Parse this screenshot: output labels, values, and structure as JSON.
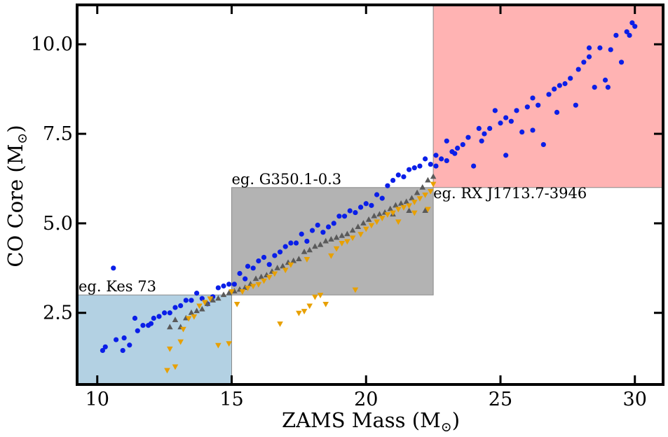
{
  "chart_data": {
    "type": "scatter",
    "xlabel": "ZAMS Mass (M",
    "xlabel_sub": "⊙",
    "xlabel_close": ")",
    "ylabel": "CO Core (M",
    "ylabel_sub": "⊙",
    "ylabel_close": ")",
    "xlim": [
      9.25,
      31.05
    ],
    "ylim": [
      0.5,
      11.1
    ],
    "xticks": [
      10,
      15,
      20,
      25,
      30
    ],
    "xtick_labels": [
      "10",
      "15",
      "20",
      "25",
      "30"
    ],
    "yticks": [
      2.5,
      5.0,
      7.5,
      10.0
    ],
    "ytick_labels": [
      "2.5",
      "5.0",
      "7.5",
      "10.0"
    ],
    "regions": [
      {
        "label": "eg. Kes 73",
        "x": [
          9.25,
          15.0
        ],
        "y": [
          0.5,
          3.0
        ],
        "color": "#b3d1e3"
      },
      {
        "label": "eg. G350.1-0.3",
        "x": [
          15.0,
          22.5
        ],
        "y": [
          3.0,
          6.0
        ],
        "color": "#b3b3b3"
      },
      {
        "label": "eg. RX J1713.7-3946",
        "x": [
          22.5,
          31.05
        ],
        "y": [
          6.0,
          11.1
        ],
        "color": "#ffb3b3"
      }
    ],
    "series": [
      {
        "name": "circles",
        "marker": "circle",
        "color": "#0a1ee8",
        "points": [
          [
            10.2,
            1.45
          ],
          [
            10.3,
            1.55
          ],
          [
            10.6,
            3.75
          ],
          [
            10.7,
            1.75
          ],
          [
            10.95,
            1.45
          ],
          [
            11.0,
            1.8
          ],
          [
            11.2,
            1.6
          ],
          [
            11.4,
            2.35
          ],
          [
            11.5,
            2.0
          ],
          [
            11.7,
            2.15
          ],
          [
            11.9,
            2.15
          ],
          [
            12.0,
            2.2
          ],
          [
            12.1,
            2.35
          ],
          [
            12.3,
            2.4
          ],
          [
            12.5,
            2.5
          ],
          [
            12.7,
            2.5
          ],
          [
            12.9,
            2.65
          ],
          [
            13.1,
            2.7
          ],
          [
            13.3,
            2.85
          ],
          [
            13.5,
            2.85
          ],
          [
            13.7,
            3.05
          ],
          [
            13.9,
            2.9
          ],
          [
            14.1,
            2.75
          ],
          [
            14.3,
            2.95
          ],
          [
            14.5,
            3.2
          ],
          [
            14.7,
            3.25
          ],
          [
            14.9,
            3.3
          ],
          [
            15.1,
            3.3
          ],
          [
            15.3,
            3.6
          ],
          [
            15.5,
            3.45
          ],
          [
            15.6,
            3.8
          ],
          [
            15.8,
            3.75
          ],
          [
            16.0,
            3.95
          ],
          [
            16.2,
            4.05
          ],
          [
            16.4,
            3.85
          ],
          [
            16.6,
            4.1
          ],
          [
            16.8,
            4.2
          ],
          [
            17.0,
            4.35
          ],
          [
            17.2,
            4.45
          ],
          [
            17.4,
            4.45
          ],
          [
            17.6,
            4.7
          ],
          [
            17.8,
            4.5
          ],
          [
            18.0,
            4.8
          ],
          [
            18.2,
            4.95
          ],
          [
            18.4,
            4.75
          ],
          [
            18.6,
            4.9
          ],
          [
            18.8,
            5.0
          ],
          [
            19.0,
            5.2
          ],
          [
            19.2,
            5.2
          ],
          [
            19.4,
            5.35
          ],
          [
            19.6,
            5.3
          ],
          [
            19.8,
            5.45
          ],
          [
            20.0,
            5.55
          ],
          [
            20.2,
            5.5
          ],
          [
            20.4,
            5.8
          ],
          [
            20.6,
            5.7
          ],
          [
            20.8,
            6.05
          ],
          [
            21.0,
            6.2
          ],
          [
            21.2,
            6.35
          ],
          [
            21.4,
            6.3
          ],
          [
            21.6,
            6.5
          ],
          [
            21.8,
            6.55
          ],
          [
            22.0,
            6.6
          ],
          [
            22.2,
            6.8
          ],
          [
            22.4,
            6.65
          ],
          [
            22.6,
            6.9
          ],
          [
            22.8,
            6.8
          ],
          [
            23.0,
            6.75
          ],
          [
            23.2,
            7.0
          ],
          [
            23.4,
            7.1
          ],
          [
            23.6,
            7.2
          ],
          [
            23.8,
            7.4
          ],
          [
            24.0,
            6.6
          ],
          [
            24.2,
            7.65
          ],
          [
            24.4,
            7.5
          ],
          [
            24.6,
            7.65
          ],
          [
            24.8,
            8.15
          ],
          [
            25.0,
            7.8
          ],
          [
            25.2,
            7.95
          ],
          [
            25.4,
            7.85
          ],
          [
            25.6,
            8.15
          ],
          [
            25.8,
            7.55
          ],
          [
            26.0,
            8.25
          ],
          [
            26.2,
            8.5
          ],
          [
            26.4,
            8.3
          ],
          [
            26.6,
            7.2
          ],
          [
            26.8,
            8.6
          ],
          [
            27.0,
            8.75
          ],
          [
            27.2,
            8.85
          ],
          [
            27.4,
            8.9
          ],
          [
            27.6,
            9.05
          ],
          [
            27.8,
            8.3
          ],
          [
            27.9,
            9.3
          ],
          [
            28.1,
            9.5
          ],
          [
            28.3,
            9.65
          ],
          [
            28.5,
            8.8
          ],
          [
            28.7,
            9.9
          ],
          [
            28.9,
            9.0
          ],
          [
            29.1,
            9.85
          ],
          [
            29.3,
            10.25
          ],
          [
            29.5,
            9.5
          ],
          [
            29.7,
            10.35
          ],
          [
            29.9,
            10.6
          ],
          [
            30.0,
            10.5
          ],
          [
            22.6,
            6.6
          ],
          [
            23.0,
            7.3
          ],
          [
            23.3,
            6.95
          ],
          [
            24.3,
            7.3
          ],
          [
            25.2,
            6.9
          ],
          [
            26.2,
            7.6
          ],
          [
            27.1,
            8.1
          ],
          [
            28.3,
            9.9
          ],
          [
            29.0,
            8.8
          ],
          [
            29.8,
            10.25
          ]
        ]
      },
      {
        "name": "up-triangles",
        "marker": "triangle-up",
        "color": "#5a5a5a",
        "points": [
          [
            12.7,
            2.1
          ],
          [
            12.9,
            2.3
          ],
          [
            13.1,
            2.1
          ],
          [
            13.3,
            2.35
          ],
          [
            13.5,
            2.5
          ],
          [
            13.7,
            2.55
          ],
          [
            13.9,
            2.6
          ],
          [
            14.1,
            2.75
          ],
          [
            14.3,
            2.85
          ],
          [
            14.5,
            2.9
          ],
          [
            14.7,
            3.0
          ],
          [
            14.9,
            3.05
          ],
          [
            15.1,
            3.1
          ],
          [
            15.3,
            3.15
          ],
          [
            15.5,
            3.2
          ],
          [
            15.7,
            3.3
          ],
          [
            15.9,
            3.45
          ],
          [
            16.1,
            3.5
          ],
          [
            16.3,
            3.55
          ],
          [
            16.5,
            3.65
          ],
          [
            16.7,
            3.75
          ],
          [
            16.9,
            3.8
          ],
          [
            17.1,
            3.9
          ],
          [
            17.3,
            3.95
          ],
          [
            17.5,
            4.0
          ],
          [
            17.7,
            4.2
          ],
          [
            17.9,
            4.25
          ],
          [
            18.1,
            4.35
          ],
          [
            18.3,
            4.4
          ],
          [
            18.5,
            4.5
          ],
          [
            18.7,
            4.55
          ],
          [
            18.9,
            4.6
          ],
          [
            19.1,
            4.65
          ],
          [
            19.3,
            4.7
          ],
          [
            19.5,
            4.8
          ],
          [
            19.7,
            4.9
          ],
          [
            19.9,
            5.0
          ],
          [
            20.1,
            5.1
          ],
          [
            20.3,
            5.2
          ],
          [
            20.5,
            5.25
          ],
          [
            20.7,
            5.3
          ],
          [
            20.9,
            5.4
          ],
          [
            21.1,
            5.5
          ],
          [
            21.3,
            5.55
          ],
          [
            21.5,
            5.6
          ],
          [
            21.7,
            5.7
          ],
          [
            21.9,
            5.85
          ],
          [
            22.1,
            6.0
          ],
          [
            22.3,
            6.2
          ],
          [
            22.5,
            6.3
          ],
          [
            21.0,
            5.25
          ],
          [
            21.6,
            5.35
          ],
          [
            22.2,
            5.35
          ]
        ]
      },
      {
        "name": "down-triangles",
        "marker": "triangle-down",
        "color": "#e8a000",
        "points": [
          [
            12.6,
            0.9
          ],
          [
            12.7,
            1.5
          ],
          [
            12.9,
            1.0
          ],
          [
            13.1,
            1.7
          ],
          [
            13.2,
            2.05
          ],
          [
            13.4,
            2.35
          ],
          [
            13.6,
            2.4
          ],
          [
            13.8,
            2.7
          ],
          [
            14.0,
            2.8
          ],
          [
            14.2,
            2.9
          ],
          [
            14.5,
            1.6
          ],
          [
            14.9,
            1.65
          ],
          [
            15.0,
            3.1
          ],
          [
            15.2,
            2.75
          ],
          [
            15.4,
            3.1
          ],
          [
            15.6,
            3.2
          ],
          [
            15.8,
            3.25
          ],
          [
            16.0,
            3.3
          ],
          [
            16.2,
            3.4
          ],
          [
            16.4,
            3.5
          ],
          [
            16.6,
            3.6
          ],
          [
            16.8,
            2.2
          ],
          [
            17.0,
            3.7
          ],
          [
            17.2,
            3.85
          ],
          [
            17.5,
            2.5
          ],
          [
            17.7,
            2.55
          ],
          [
            17.8,
            4.0
          ],
          [
            17.9,
            2.7
          ],
          [
            18.1,
            2.95
          ],
          [
            18.3,
            3.0
          ],
          [
            18.5,
            2.75
          ],
          [
            18.7,
            4.1
          ],
          [
            18.9,
            4.3
          ],
          [
            19.1,
            4.45
          ],
          [
            19.3,
            4.5
          ],
          [
            19.5,
            4.6
          ],
          [
            19.6,
            3.15
          ],
          [
            19.8,
            4.7
          ],
          [
            20.0,
            4.85
          ],
          [
            20.2,
            4.95
          ],
          [
            20.4,
            5.05
          ],
          [
            20.6,
            5.15
          ],
          [
            20.8,
            5.25
          ],
          [
            21.0,
            5.3
          ],
          [
            21.2,
            5.4
          ],
          [
            21.4,
            5.45
          ],
          [
            21.6,
            5.5
          ],
          [
            21.8,
            5.6
          ],
          [
            22.0,
            5.7
          ],
          [
            22.2,
            5.8
          ],
          [
            22.4,
            5.9
          ],
          [
            22.5,
            6.1
          ],
          [
            21.2,
            5.05
          ],
          [
            21.8,
            5.3
          ],
          [
            22.3,
            5.4
          ]
        ]
      }
    ]
  }
}
